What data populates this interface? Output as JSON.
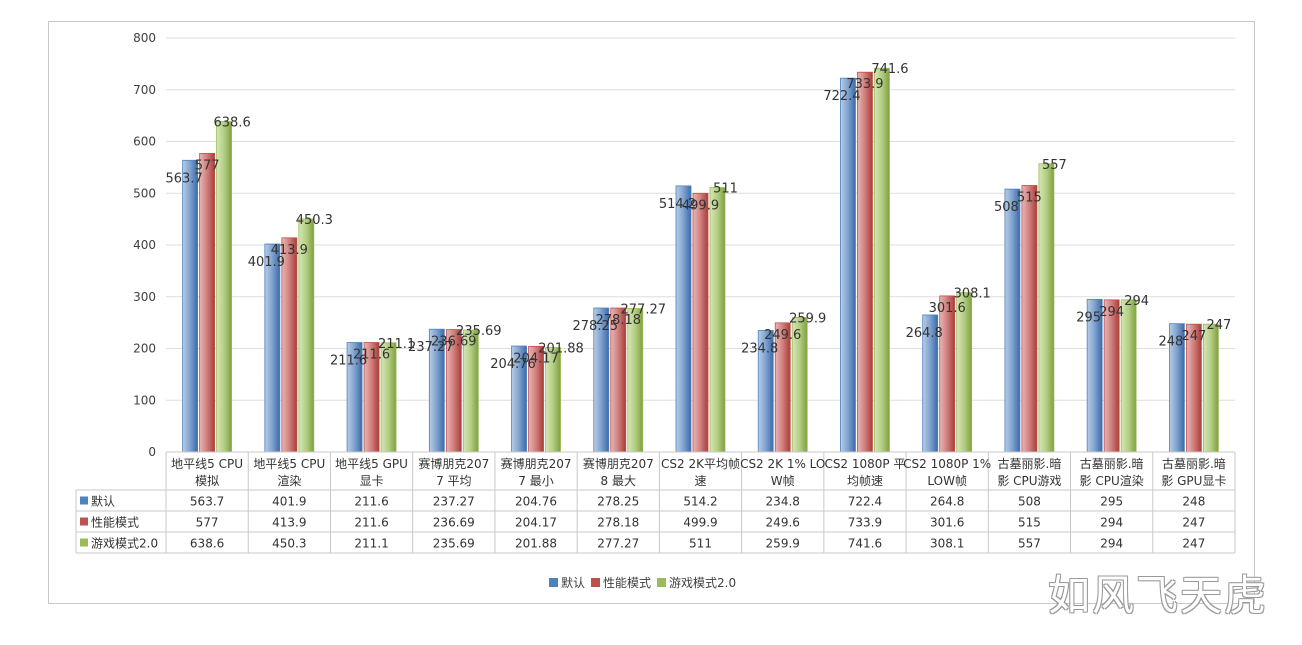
{
  "chart_data": {
    "type": "bar",
    "title": "",
    "xlabel": "",
    "ylabel": "",
    "ylim": [
      0,
      800
    ],
    "yticks": [
      0,
      100,
      200,
      300,
      400,
      500,
      600,
      700,
      800
    ],
    "grid": true,
    "legend_position": "bottom",
    "categories": [
      [
        "地平线5 CPU",
        "模拟"
      ],
      [
        "地平线5 CPU",
        "渲染"
      ],
      [
        "地平线5 GPU",
        "显卡"
      ],
      [
        "赛博朋克207",
        "7 平均"
      ],
      [
        "赛博朋克207",
        "7 最小"
      ],
      [
        "赛博朋克207",
        "8 最大"
      ],
      [
        "CS2 2K平均帧",
        "速"
      ],
      [
        "CS2 2K 1% LO",
        "W帧"
      ],
      [
        "CS2  1080P 平",
        "均帧速"
      ],
      [
        "CS2 1080P 1%",
        "LOW帧"
      ],
      [
        "古墓丽影.暗",
        "影 CPU游戏"
      ],
      [
        "古墓丽影.暗",
        "影 CPU渲染"
      ],
      [
        "古墓丽影.暗",
        "影 GPU显卡"
      ]
    ],
    "series": [
      {
        "name": "默认",
        "color": "#4f81bd",
        "values": [
          563.7,
          401.9,
          211.6,
          237.27,
          204.76,
          278.25,
          514.2,
          234.8,
          722.4,
          264.8,
          508,
          295,
          248
        ],
        "labels": [
          "563.7",
          "401.9",
          "211.6",
          "237.27",
          "204.76",
          "278.25",
          "514.2",
          "234.8",
          "722.4",
          "264.8",
          "508",
          "295",
          "248"
        ]
      },
      {
        "name": "性能模式",
        "color": "#c0504d",
        "values": [
          577,
          413.9,
          211.6,
          236.69,
          204.17,
          278.18,
          499.9,
          249.6,
          733.9,
          301.6,
          515,
          294,
          247
        ],
        "labels": [
          "577",
          "413.9",
          "211.6",
          "236.69",
          "204.17",
          "278.18",
          "499.9",
          "249.6",
          "733.9",
          "301.6",
          "515",
          "294",
          "247"
        ]
      },
      {
        "name": "游戏模式2.0",
        "color": "#9bbb59",
        "values": [
          638.6,
          450.3,
          211.1,
          235.69,
          201.88,
          277.27,
          511,
          259.9,
          741.6,
          308.1,
          557,
          294,
          247
        ],
        "labels": [
          "638.6",
          "450.3",
          "211.1",
          "235.69",
          "201.88",
          "277.27",
          "511",
          "259.9",
          "741.6",
          "308.1",
          "557",
          "294",
          "247"
        ]
      }
    ]
  },
  "watermark": "如风飞天虎"
}
